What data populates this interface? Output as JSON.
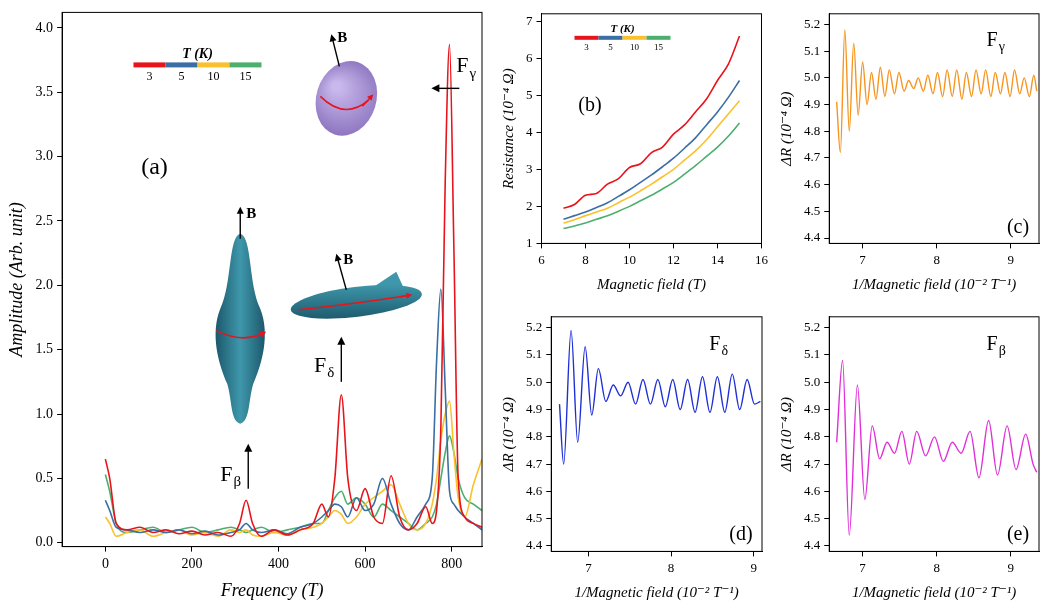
{
  "chart_data": [
    {
      "type": "line",
      "panel_label": "(a)",
      "x_label": "Frequency (T)",
      "y_label": "Amplitude (Arb. unit)",
      "xlim": [
        -100,
        870
      ],
      "xticks": [
        0,
        200,
        400,
        600,
        800
      ],
      "ylim": [
        -0.03,
        4.12
      ],
      "yticks": [
        {
          "value": 0,
          "label": "0.0"
        },
        {
          "value": 0.5,
          "label": "0.5"
        },
        {
          "value": 1,
          "label": "1.0"
        },
        {
          "value": 1.5,
          "label": "1.5"
        },
        {
          "value": 2,
          "label": "2.0"
        },
        {
          "value": 2.5,
          "label": "2.5"
        },
        {
          "value": 3,
          "label": "3.0"
        },
        {
          "value": 3.5,
          "label": "3.5"
        },
        {
          "value": 4,
          "label": "4.0"
        }
      ],
      "grid": false,
      "legend": "top-left",
      "legend_title": "T (K)",
      "x": [
        0,
        10,
        25,
        50,
        80,
        110,
        140,
        170,
        200,
        230,
        260,
        290,
        310,
        325,
        340,
        360,
        390,
        420,
        450,
        480,
        500,
        515,
        530,
        545,
        560,
        580,
        600,
        620,
        640,
        660,
        680,
        700,
        720,
        740,
        755,
        765,
        775,
        785,
        795,
        805,
        815,
        830,
        850,
        870
      ],
      "series": [
        {
          "name": "3",
          "color": "#e8141c",
          "values": [
            0.65,
            0.5,
            0.15,
            0.1,
            0.12,
            0.08,
            0.1,
            0.07,
            0.09,
            0.06,
            0.08,
            0.05,
            0.15,
            0.33,
            0.15,
            0.05,
            0.1,
            0.06,
            0.1,
            0.15,
            0.3,
            0.2,
            0.5,
            1.15,
            0.5,
            0.25,
            0.42,
            0.2,
            0.15,
            0.52,
            0.2,
            0.1,
            0.15,
            0.28,
            0.15,
            0.25,
            0.9,
            2.8,
            3.87,
            2.3,
            0.5,
            0.2,
            0.15,
            0.12
          ]
        },
        {
          "name": "5",
          "color": "#3a6ea5",
          "values": [
            0.33,
            0.25,
            0.12,
            0.1,
            0.08,
            0.1,
            0.08,
            0.1,
            0.07,
            0.09,
            0.06,
            0.08,
            0.1,
            0.15,
            0.1,
            0.08,
            0.1,
            0.07,
            0.12,
            0.15,
            0.2,
            0.25,
            0.3,
            0.28,
            0.2,
            0.35,
            0.25,
            0.3,
            0.5,
            0.3,
            0.15,
            0.1,
            0.2,
            0.3,
            0.5,
            1.4,
            1.97,
            1.2,
            0.4,
            0.3,
            0.25,
            0.2,
            0.15,
            0.1
          ]
        },
        {
          "name": "10",
          "color": "#fbc02d",
          "values": [
            0.2,
            0.15,
            0.05,
            0.08,
            0.1,
            0.05,
            0.08,
            0.1,
            0.06,
            0.08,
            0.05,
            0.1,
            0.08,
            0.1,
            0.06,
            0.05,
            0.08,
            0.06,
            0.1,
            0.12,
            0.15,
            0.2,
            0.25,
            0.22,
            0.15,
            0.2,
            0.3,
            0.35,
            0.4,
            0.45,
            0.3,
            0.15,
            0.1,
            0.15,
            0.3,
            0.5,
            0.8,
            1.0,
            1.1,
            0.7,
            0.35,
            0.2,
            0.45,
            0.65
          ]
        },
        {
          "name": "15",
          "color": "#4caf6e",
          "values": [
            0.53,
            0.4,
            0.15,
            0.08,
            0.1,
            0.12,
            0.08,
            0.1,
            0.12,
            0.08,
            0.1,
            0.12,
            0.1,
            0.08,
            0.1,
            0.12,
            0.08,
            0.1,
            0.12,
            0.15,
            0.15,
            0.25,
            0.35,
            0.4,
            0.3,
            0.35,
            0.3,
            0.2,
            0.3,
            0.25,
            0.2,
            0.15,
            0.1,
            0.15,
            0.2,
            0.3,
            0.5,
            0.7,
            0.83,
            0.7,
            0.5,
            0.35,
            0.3,
            0.25
          ]
        }
      ],
      "annotations": [
        {
          "text": "Fβ",
          "x": 330,
          "y": 0.42,
          "marker": "arrow-up",
          "field_label": "B"
        },
        {
          "text": "Fδ",
          "x": 545,
          "y": 1.25,
          "marker": "arrow-up",
          "field_label": "B"
        },
        {
          "text": "Fγ",
          "x": 753,
          "y": 3.53,
          "marker": "arrow-left",
          "field_label": "B"
        }
      ]
    },
    {
      "type": "line",
      "panel_label": "(b)",
      "x_label": "Magnetic field (T)",
      "y_label": "Resistance (10⁻⁴ Ω)",
      "xlim": [
        6,
        16
      ],
      "xticks": [
        6,
        8,
        10,
        12,
        14,
        16
      ],
      "ylim": [
        1,
        7.2
      ],
      "yticks": [
        1,
        2,
        3,
        4,
        5,
        6,
        7
      ],
      "grid": false,
      "legend": "top-left",
      "legend_title": "T (K)",
      "x": [
        7,
        7.5,
        8,
        8.5,
        9,
        9.5,
        10,
        10.5,
        11,
        11.5,
        12,
        12.5,
        13,
        13.5,
        14,
        14.5,
        15
      ],
      "series": [
        {
          "name": "3",
          "color": "#e8141c",
          "values": [
            1.95,
            2.05,
            2.3,
            2.35,
            2.6,
            2.75,
            3.05,
            3.15,
            3.45,
            3.6,
            3.95,
            4.2,
            4.55,
            4.9,
            5.4,
            5.85,
            6.6
          ]
        },
        {
          "name": "5",
          "color": "#3a6ea5",
          "values": [
            1.65,
            1.75,
            1.85,
            1.97,
            2.1,
            2.27,
            2.45,
            2.65,
            2.85,
            3.07,
            3.3,
            3.57,
            3.85,
            4.2,
            4.55,
            4.95,
            5.4
          ]
        },
        {
          "name": "10",
          "color": "#fbc02d",
          "values": [
            1.55,
            1.64,
            1.75,
            1.85,
            1.95,
            2.1,
            2.25,
            2.42,
            2.6,
            2.8,
            3.0,
            3.25,
            3.5,
            3.8,
            4.15,
            4.5,
            4.85
          ]
        },
        {
          "name": "15",
          "color": "#4caf6e",
          "values": [
            1.4,
            1.47,
            1.55,
            1.65,
            1.75,
            1.87,
            2.0,
            2.15,
            2.3,
            2.47,
            2.65,
            2.87,
            3.1,
            3.35,
            3.6,
            3.9,
            4.25
          ]
        }
      ]
    },
    {
      "type": "line",
      "panel_label": "(c)",
      "x_label": "1/Magnetic field (10⁻² T⁻¹)",
      "y_label": "ΔR (10⁻⁴ Ω)",
      "xlim": [
        6.55,
        9.38
      ],
      "xticks": [
        7,
        8,
        9
      ],
      "ylim": [
        4.38,
        5.24
      ],
      "yticks": [
        4.4,
        4.5,
        4.6,
        4.7,
        4.8,
        4.9,
        {
          "value": 5,
          "label": "5.0"
        },
        5.1,
        5.2
      ],
      "grid": false,
      "color": "#f7941d",
      "x": [
        6.65,
        6.7,
        6.76,
        6.82,
        6.88,
        6.94,
        7.0,
        7.06,
        7.12,
        7.18,
        7.24,
        7.3,
        7.36,
        7.43,
        7.49,
        7.56,
        7.62,
        7.69,
        7.75,
        7.82,
        7.88,
        7.95,
        8.01,
        8.08,
        8.14,
        8.21,
        8.27,
        8.34,
        8.4,
        8.47,
        8.53,
        8.6,
        8.66,
        8.73,
        8.79,
        8.86,
        8.92,
        8.99,
        9.05,
        9.12,
        9.18,
        9.25,
        9.31,
        9.35
      ],
      "values": [
        4.91,
        4.72,
        5.18,
        4.8,
        5.13,
        4.86,
        5.06,
        4.9,
        5.02,
        4.92,
        5.04,
        4.93,
        5.03,
        4.94,
        5.02,
        4.95,
        4.99,
        4.96,
        5.0,
        4.95,
        5.01,
        4.94,
        5.02,
        4.93,
        5.03,
        4.93,
        5.03,
        4.92,
        5.02,
        4.93,
        5.03,
        4.94,
        5.03,
        4.93,
        5.02,
        4.94,
        5.02,
        4.93,
        5.03,
        4.94,
        5.0,
        4.93,
        5.01,
        4.95
      ],
      "annotations": [
        {
          "text": "Fγ"
        }
      ]
    },
    {
      "type": "line",
      "panel_label": "(d)",
      "x_label": "1/Magnetic field (10⁻² T⁻¹)",
      "y_label": "ΔR (10⁻⁴ Ω)",
      "xlim": [
        6.55,
        9.1
      ],
      "xticks": [
        7,
        8,
        9
      ],
      "ylim": [
        4.38,
        5.24
      ],
      "yticks": [
        4.4,
        4.5,
        4.6,
        4.7,
        4.8,
        4.9,
        {
          "value": 5,
          "label": "5.0"
        },
        5.1,
        5.2
      ],
      "grid": false,
      "color": "#1f2fd6",
      "x": [
        6.65,
        6.7,
        6.79,
        6.87,
        6.96,
        7.04,
        7.12,
        7.21,
        7.3,
        7.39,
        7.48,
        7.57,
        7.66,
        7.75,
        7.84,
        7.93,
        8.02,
        8.11,
        8.2,
        8.29,
        8.38,
        8.47,
        8.56,
        8.65,
        8.74,
        8.83,
        8.92,
        9.01,
        9.08
      ],
      "values": [
        4.92,
        4.7,
        5.19,
        4.78,
        5.13,
        4.88,
        5.05,
        4.93,
        4.99,
        4.95,
        5.0,
        4.92,
        5.01,
        4.92,
        5.01,
        4.91,
        5.01,
        4.9,
        5.01,
        4.89,
        5.02,
        4.89,
        5.02,
        4.89,
        5.03,
        4.9,
        5.01,
        4.92,
        4.93
      ],
      "annotations": [
        {
          "text": "Fδ"
        }
      ]
    },
    {
      "type": "line",
      "panel_label": "(e)",
      "x_label": "1/Magnetic field (10⁻² T⁻¹)",
      "y_label": "ΔR (10⁻⁴ Ω)",
      "xlim": [
        6.55,
        9.38
      ],
      "xticks": [
        7,
        8,
        9
      ],
      "ylim": [
        4.38,
        5.24
      ],
      "yticks": [
        4.4,
        4.5,
        4.6,
        4.7,
        4.8,
        4.9,
        {
          "value": 5,
          "label": "5.0"
        },
        5.1,
        5.2
      ],
      "grid": false,
      "color": "#e02fd8",
      "x": [
        6.65,
        6.73,
        6.82,
        6.93,
        7.03,
        7.13,
        7.23,
        7.33,
        7.43,
        7.53,
        7.63,
        7.73,
        7.85,
        7.97,
        8.09,
        8.21,
        8.33,
        8.45,
        8.57,
        8.7,
        8.82,
        8.95,
        9.07,
        9.2,
        9.3,
        9.35
      ],
      "values": [
        4.78,
        5.08,
        4.44,
        4.99,
        4.57,
        4.84,
        4.72,
        4.78,
        4.74,
        4.82,
        4.7,
        4.82,
        4.73,
        4.8,
        4.71,
        4.78,
        4.74,
        4.82,
        4.65,
        4.86,
        4.66,
        4.84,
        4.68,
        4.81,
        4.7,
        4.67
      ],
      "annotations": [
        {
          "text": "Fβ"
        }
      ]
    }
  ]
}
